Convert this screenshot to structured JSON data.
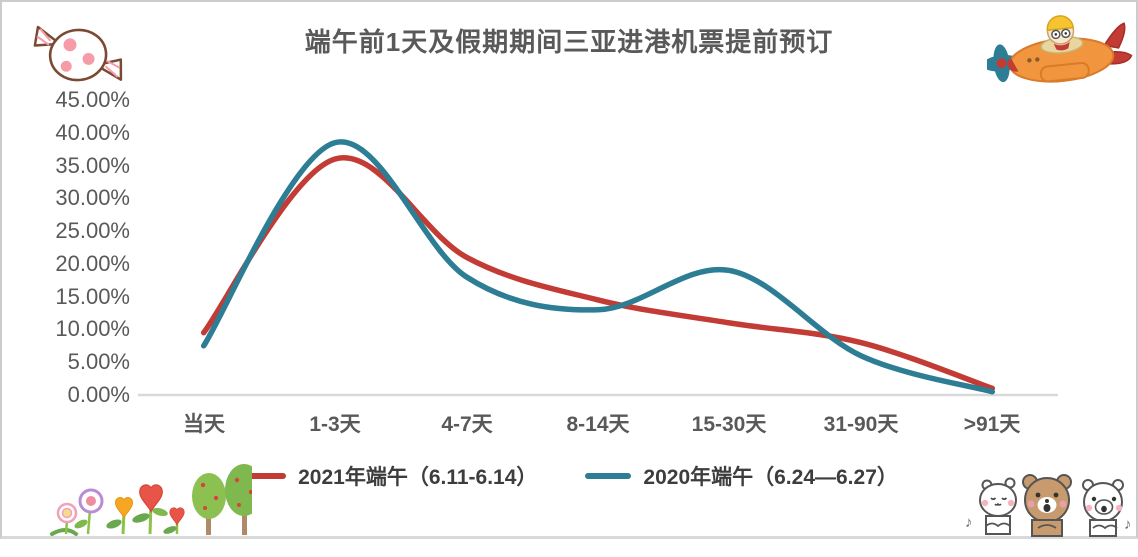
{
  "title": "端午前1天及假期期间三亚进港机票提前预订",
  "chart_data": {
    "type": "line",
    "title": "端午前1天及假期期间三亚进港机票提前预订",
    "categories": [
      "当天",
      "1-3天",
      "4-7天",
      "8-14天",
      "15-30天",
      "31-90天",
      ">91天"
    ],
    "series": [
      {
        "name": "2021年端午（6.11-6.14）",
        "color": "#C33B35",
        "values": [
          9.5,
          36,
          21,
          14.5,
          11,
          8,
          1
        ]
      },
      {
        "name": "2020年端午（6.24—6.27）",
        "color": "#2D7D95",
        "values": [
          7.5,
          38.5,
          18,
          13,
          19,
          6,
          0.5
        ]
      }
    ],
    "values_unit": "%",
    "ylim": [
      0,
      45
    ],
    "ytick_step": 5,
    "yticks": [
      "45.00%",
      "40.00%",
      "35.00%",
      "30.00%",
      "25.00%",
      "20.00%",
      "15.00%",
      "10.00%",
      "5.00%",
      "0.00%"
    ],
    "xlabel": "",
    "ylabel": "",
    "grid": false,
    "line_style": "smooth",
    "legend_position": "bottom",
    "axis_line_color": "#D9D9D9",
    "text_color": "#595959"
  },
  "decorations": {
    "top_left": "pink-wrapped-candy",
    "top_right": "cartoon-airplane-with-pilot",
    "bottom_left": "flowers-hearts-and-trees",
    "bottom_right": "three-cartoon-bears",
    "music_note_left": "♪",
    "music_note_right": "♪"
  }
}
